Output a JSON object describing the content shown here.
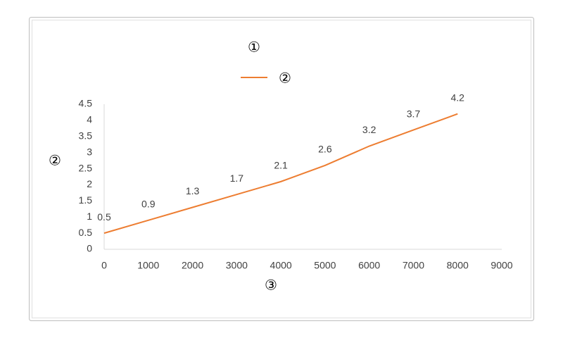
{
  "chart_data": {
    "type": "line",
    "title": "①",
    "x_label": "③",
    "y_label": "②",
    "x": [
      0,
      1000,
      2000,
      3000,
      4000,
      5000,
      6000,
      7000,
      8000
    ],
    "series": [
      {
        "name": "②",
        "color": "#ed7d31",
        "values": [
          0.5,
          0.9,
          1.3,
          1.7,
          2.1,
          2.6,
          3.2,
          3.7,
          4.2
        ]
      }
    ],
    "xlim": [
      0,
      9000
    ],
    "xticks": [
      0,
      1000,
      2000,
      3000,
      4000,
      5000,
      6000,
      7000,
      8000,
      9000
    ],
    "ylim": [
      0,
      4.5
    ],
    "yticks": [
      0,
      0.5,
      1,
      1.5,
      2,
      2.5,
      3,
      3.5,
      4,
      4.5
    ],
    "data_labels": true
  }
}
